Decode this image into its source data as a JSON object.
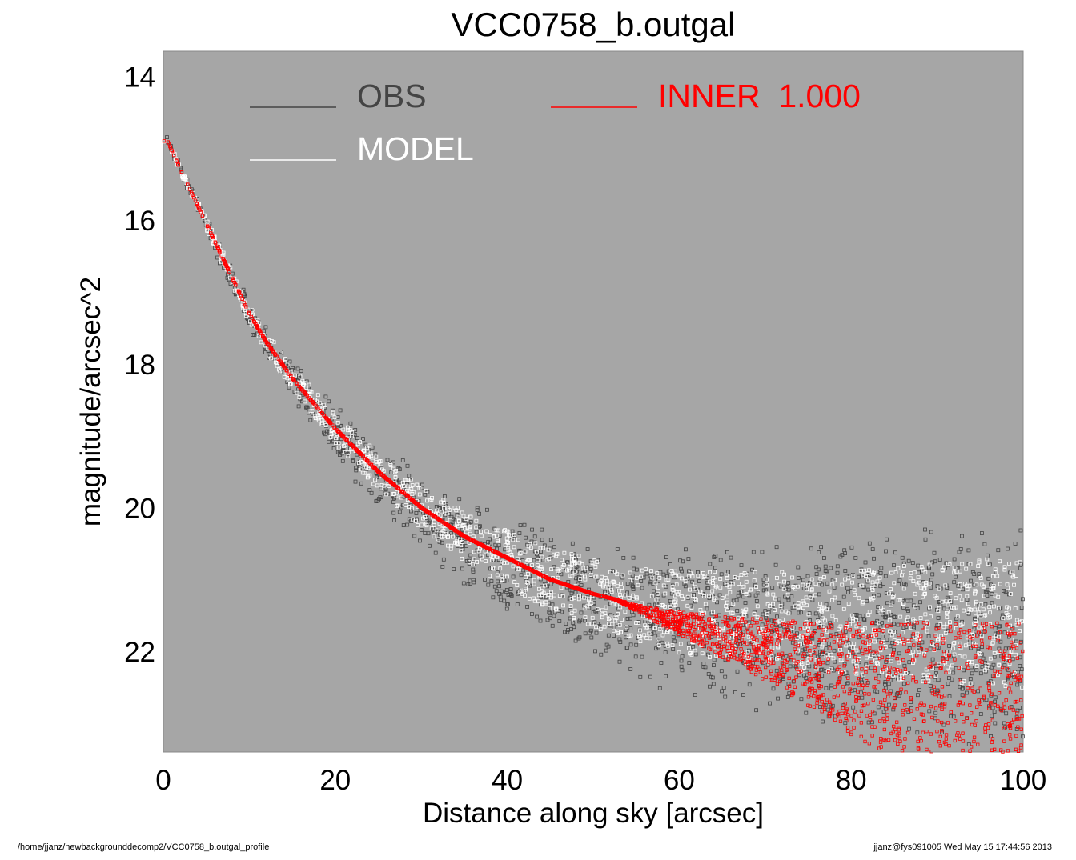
{
  "chart_data": {
    "type": "scatter",
    "title": "VCC0758_b.outgal",
    "xlabel": "Distance along sky [arcsec]",
    "ylabel": "magnitude/arcsec^2",
    "xlim": [
      0,
      100
    ],
    "ylim": [
      23.4,
      13.65
    ],
    "y_inverted": true,
    "xticks": [
      0,
      20,
      40,
      60,
      80,
      100
    ],
    "yticks": [
      14,
      16,
      18,
      20,
      22
    ],
    "background_color": "#a6a6a6",
    "grid": false,
    "legend_position": "top",
    "legend": [
      {
        "label": "OBS",
        "color": "#444444"
      },
      {
        "label": "MODEL",
        "color": "#ffffff"
      },
      {
        "label": "INNER  1.000",
        "color": "#ff0000"
      }
    ],
    "series": [
      {
        "name": "OBS",
        "color": "#444444",
        "x": [
          0.5,
          2,
          4,
          6,
          8,
          10,
          12,
          15,
          20,
          25,
          30,
          35,
          40,
          45,
          50,
          55,
          60,
          65,
          70,
          75,
          80,
          85,
          90,
          95,
          100
        ],
        "y": [
          14.9,
          15.3,
          15.8,
          16.3,
          16.8,
          17.3,
          17.7,
          18.2,
          18.9,
          19.5,
          20.0,
          20.4,
          20.7,
          21.0,
          21.2,
          21.35,
          21.45,
          21.5,
          21.55,
          21.6,
          21.6,
          21.6,
          21.6,
          21.6,
          21.6
        ]
      },
      {
        "name": "MODEL",
        "color": "#ffffff",
        "x": [
          0.5,
          2,
          4,
          6,
          8,
          10,
          12,
          15,
          20,
          25,
          30,
          35,
          40,
          45,
          50,
          55,
          60,
          65,
          70,
          75,
          80,
          85,
          90,
          95,
          100
        ],
        "y": [
          14.9,
          15.3,
          15.8,
          16.3,
          16.8,
          17.3,
          17.7,
          18.2,
          18.9,
          19.5,
          20.0,
          20.4,
          20.7,
          21.0,
          21.2,
          21.35,
          21.45,
          21.5,
          21.55,
          21.6,
          21.6,
          21.6,
          21.6,
          21.6,
          21.6
        ]
      },
      {
        "name": "INNER  1.000",
        "color": "#ff0000",
        "x": [
          0.5,
          2,
          4,
          6,
          8,
          10,
          12,
          15,
          20,
          25,
          30,
          35,
          40,
          45,
          48,
          50,
          55,
          60,
          65,
          70,
          75,
          80,
          85,
          89
        ],
        "y": [
          14.9,
          15.2,
          15.6,
          16.0,
          16.4,
          16.8,
          17.1,
          17.55,
          18.2,
          18.75,
          19.25,
          19.65,
          20.0,
          20.3,
          20.5,
          20.6,
          20.9,
          21.2,
          21.5,
          21.8,
          22.15,
          22.55,
          22.95,
          23.35
        ]
      }
    ]
  },
  "footer": {
    "path": "/home/jjanz/newbackgrounddecomp2/VCC0758_b.outgal_profile",
    "user_stamp": "jjanz@fys091005  Wed May 15 17:44:56 2013"
  }
}
